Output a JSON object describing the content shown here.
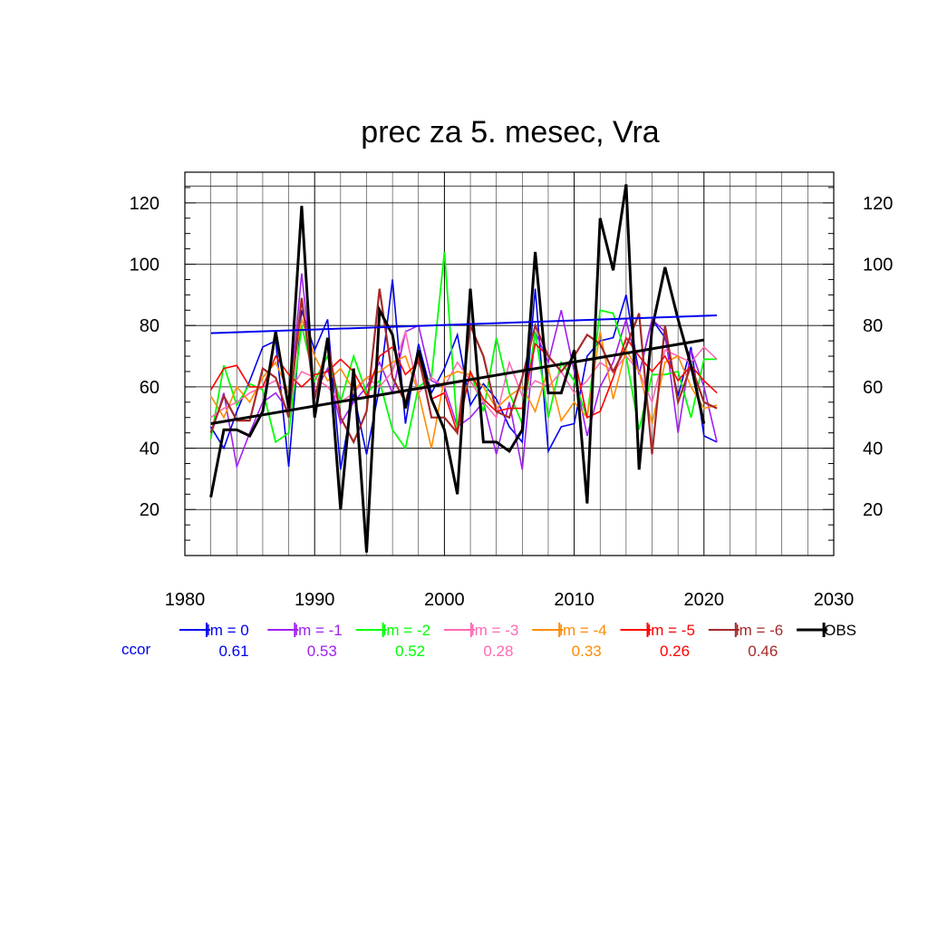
{
  "chart_data": {
    "type": "line",
    "title": "prec za 5. mesec, Vra",
    "xlabel": "",
    "ylabel": "",
    "xlim": [
      1980,
      2030
    ],
    "ylim": [
      5,
      130
    ],
    "x_ticks": [
      1980,
      1990,
      2000,
      2010,
      2020,
      2030
    ],
    "y_ticks": [
      20,
      40,
      60,
      80,
      100,
      120
    ],
    "grid": true,
    "legend_position": "bottom",
    "ccor_label": "ccor",
    "x": [
      1982,
      1983,
      1984,
      1985,
      1986,
      1987,
      1988,
      1989,
      1990,
      1991,
      1992,
      1993,
      1994,
      1995,
      1996,
      1997,
      1998,
      1999,
      2000,
      2001,
      2002,
      2003,
      2004,
      2005,
      2006,
      2007,
      2008,
      2009,
      2010,
      2011,
      2012,
      2013,
      2014,
      2015,
      2016,
      2017,
      2018,
      2019,
      2020,
      2021
    ],
    "series": [
      {
        "name": "lm = 0",
        "color": "#0000ee",
        "ccor": "0.61",
        "width": 1.6,
        "values": [
          47,
          40,
          52,
          62,
          73,
          75,
          34,
          85,
          72,
          82,
          33,
          58,
          38,
          60,
          95,
          48,
          74,
          58,
          66,
          77,
          54,
          61,
          56,
          47,
          42,
          92,
          39,
          47,
          48,
          70,
          75,
          76,
          90,
          64,
          82,
          76,
          57,
          73,
          44,
          42
        ],
        "trend": [
          77.5,
          83.3
        ]
      },
      {
        "name": "lm = -1",
        "color": "#a020f0",
        "ccor": "0.53",
        "width": 1.6,
        "values": [
          44,
          58,
          34,
          45,
          55,
          58,
          52,
          97,
          58,
          66,
          48,
          55,
          60,
          68,
          58,
          78,
          80,
          62,
          60,
          47,
          50,
          55,
          38,
          55,
          33,
          78,
          68,
          85,
          65,
          44,
          60,
          68,
          82,
          64,
          82,
          78,
          45,
          72,
          60,
          42
        ]
      },
      {
        "name": "lm = -2",
        "color": "#00ff00",
        "ccor": "0.52",
        "width": 1.8,
        "values": [
          43,
          67,
          54,
          61,
          59,
          42,
          45,
          80,
          62,
          70,
          55,
          70,
          58,
          62,
          46,
          40,
          60,
          63,
          104,
          46,
          65,
          52,
          76,
          58,
          48,
          78,
          50,
          68,
          62,
          50,
          85,
          84,
          70,
          46,
          64,
          64,
          65,
          50,
          69,
          69
        ]
      },
      {
        "name": "lm = -3",
        "color": "#ff69b4",
        "ccor": "0.28",
        "width": 1.6,
        "values": [
          50,
          53,
          55,
          58,
          60,
          62,
          58,
          65,
          63,
          60,
          55,
          58,
          63,
          60,
          65,
          78,
          58,
          63,
          60,
          68,
          62,
          55,
          50,
          68,
          57,
          62,
          60,
          65,
          58,
          62,
          68,
          65,
          70,
          65,
          55,
          72,
          70,
          68,
          73,
          69
        ]
      },
      {
        "name": "lm = -4",
        "color": "#ff8c00",
        "ccor": "0.33",
        "width": 1.6,
        "values": [
          57,
          50,
          60,
          55,
          63,
          68,
          58,
          82,
          70,
          62,
          66,
          59,
          63,
          65,
          68,
          70,
          58,
          40,
          63,
          65,
          64,
          60,
          53,
          57,
          60,
          52,
          66,
          49,
          55,
          50,
          78,
          56,
          72,
          65,
          48,
          68,
          70,
          60,
          53,
          54
        ]
      },
      {
        "name": "lm = -5",
        "color": "#ff0000",
        "ccor": "0.26",
        "width": 1.6,
        "values": [
          59,
          66,
          67,
          60,
          60,
          70,
          64,
          60,
          64,
          65,
          69,
          65,
          57,
          70,
          73,
          64,
          68,
          56,
          58,
          45,
          65,
          56,
          52,
          53,
          53,
          74,
          70,
          65,
          70,
          50,
          52,
          63,
          76,
          70,
          65,
          70,
          62,
          67,
          62,
          58
        ]
      },
      {
        "name": "lm = -6",
        "color": "#a52a2a",
        "ccor": "0.46",
        "width": 2.2,
        "values": [
          45,
          57,
          49,
          49,
          66,
          63,
          50,
          89,
          56,
          75,
          50,
          42,
          52,
          92,
          63,
          55,
          70,
          50,
          50,
          45,
          80,
          70,
          52,
          50,
          63,
          80,
          70,
          65,
          70,
          77,
          74,
          65,
          73,
          84,
          38,
          80,
          55,
          67,
          55,
          53
        ]
      },
      {
        "name": "OBS",
        "color": "#000000",
        "ccor": "",
        "width": 3.0,
        "values": [
          24,
          46,
          46,
          44,
          52,
          78,
          53,
          119,
          50,
          76,
          20,
          66,
          6,
          85,
          77,
          53,
          72,
          56,
          46,
          25,
          92,
          42,
          42,
          39,
          46,
          104,
          58,
          58,
          72,
          22,
          115,
          98,
          126,
          33,
          79,
          99,
          82,
          67,
          48,
          null
        ],
        "trend": [
          48,
          75.3
        ]
      }
    ]
  }
}
